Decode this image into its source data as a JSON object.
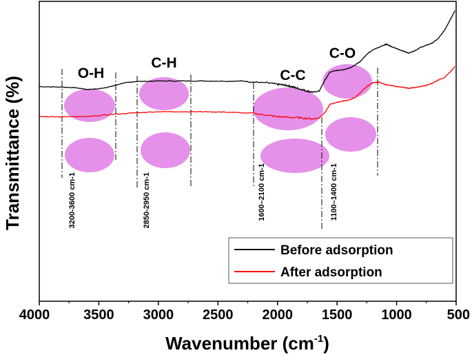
{
  "chart_data": {
    "type": "line",
    "title": "",
    "xlabel": "Wavenumber (cm",
    "xlabel_sup": "-1",
    "xlabel_close": ")",
    "ylabel": "Transmittance (%)",
    "xlim": [
      4000,
      500
    ],
    "xticks": [
      "4000",
      "3500",
      "3000",
      "2500",
      "2000",
      "1500",
      "1000",
      "500"
    ],
    "grid": false,
    "legend_position": "bottom-right",
    "series": [
      {
        "name": "Before adsorption",
        "color": "#000000",
        "x": [
          4000,
          3800,
          3700,
          3600,
          3500,
          3400,
          3300,
          3200,
          3000,
          2800,
          2600,
          2400,
          2300,
          2200,
          2100,
          2000,
          1950,
          1900,
          1850,
          1800,
          1750,
          1700,
          1650,
          1600,
          1560,
          1500,
          1450,
          1400,
          1350,
          1300,
          1250,
          1200,
          1150,
          1100,
          1080,
          1050,
          1000,
          950,
          900,
          850,
          800,
          750,
          700,
          650,
          600,
          550,
          510
        ],
        "y": [
          20,
          19.5,
          19,
          17.5,
          18,
          20,
          23,
          24.5,
          25,
          25,
          25,
          24.8,
          25,
          24,
          23.5,
          22,
          21.5,
          20.5,
          19,
          17.5,
          16,
          15,
          16,
          26,
          33,
          34.5,
          35,
          36.5,
          39,
          43,
          49,
          53,
          55,
          57.5,
          58,
          56,
          54,
          52,
          50,
          52,
          55,
          57,
          59,
          63,
          70,
          80,
          88
        ]
      },
      {
        "name": "After adsorption",
        "color": "#ff0000",
        "x": [
          4000,
          3800,
          3600,
          3400,
          3200,
          3000,
          2800,
          2600,
          2400,
          2200,
          2100,
          2000,
          1900,
          1800,
          1700,
          1650,
          1600,
          1560,
          1500,
          1450,
          1400,
          1350,
          1300,
          1250,
          1200,
          1150,
          1100,
          1050,
          1000,
          950,
          900,
          850,
          800,
          750,
          700,
          650,
          600,
          550,
          510
        ],
        "y": [
          -7,
          -7,
          -7,
          -5,
          -3.5,
          -2.5,
          -2.5,
          -2.5,
          -3,
          -4,
          -5.5,
          -7,
          -7.5,
          -8,
          -9,
          -8,
          -3,
          4,
          6,
          7,
          8,
          10,
          15,
          20,
          23.5,
          24,
          22,
          21,
          20,
          19.5,
          18.5,
          19,
          20,
          21,
          23,
          26,
          28,
          33,
          38
        ]
      }
    ],
    "annotations": {
      "groups": [
        "O-H",
        "C-H",
        "C-C",
        "C-O"
      ],
      "ranges": [
        "3200-3600 cm-1",
        "2850-2950 cm-1",
        "1600–2100 cm-1",
        "1100–1400 cm-1"
      ]
    }
  }
}
